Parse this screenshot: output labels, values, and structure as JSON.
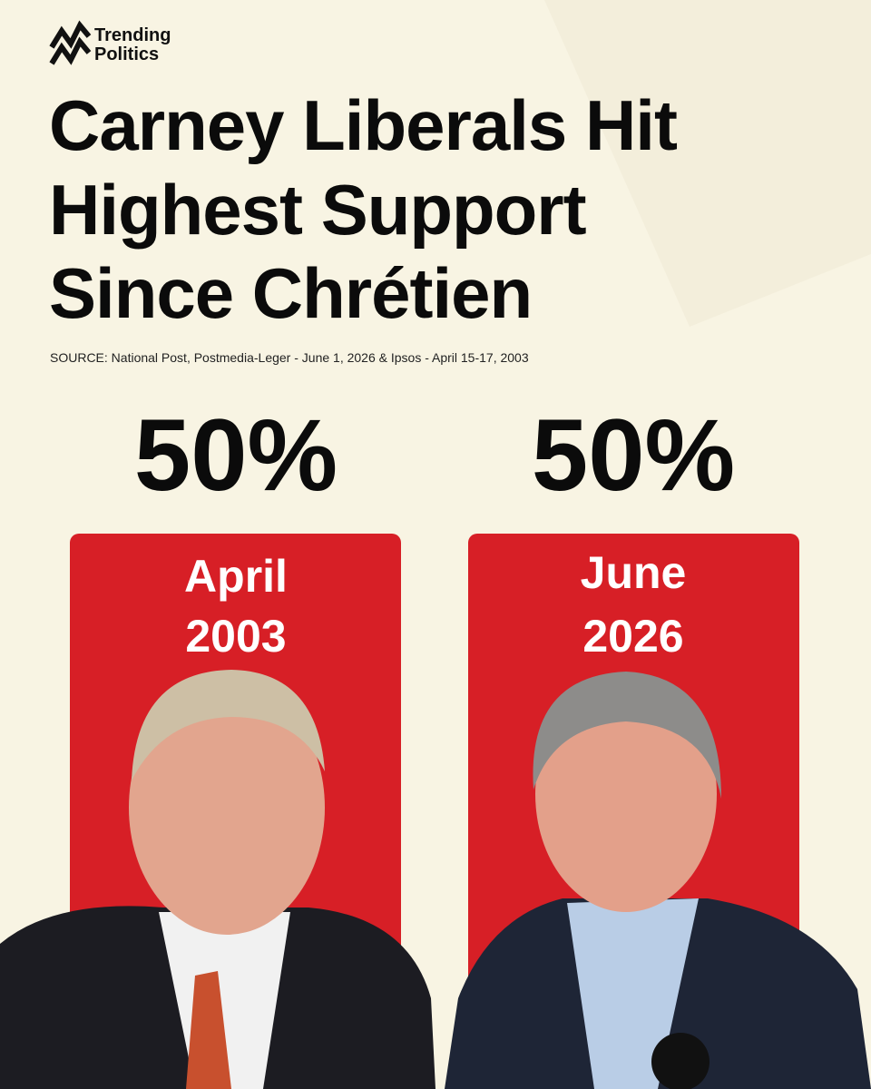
{
  "brand": {
    "line1": "Trending",
    "line2": "Politics"
  },
  "title_lines": [
    "Carney Liberals Hit",
    "Highest Support",
    "Since Chrétien"
  ],
  "source": "SOURCE: National Post, Postmedia-Leger - June 1, 2026 & Ipsos - April 15-17, 2003",
  "panels": [
    {
      "value": "50%",
      "month": "April",
      "year": "2003"
    },
    {
      "value": "50%",
      "month": "June",
      "year": "2026"
    }
  ]
}
